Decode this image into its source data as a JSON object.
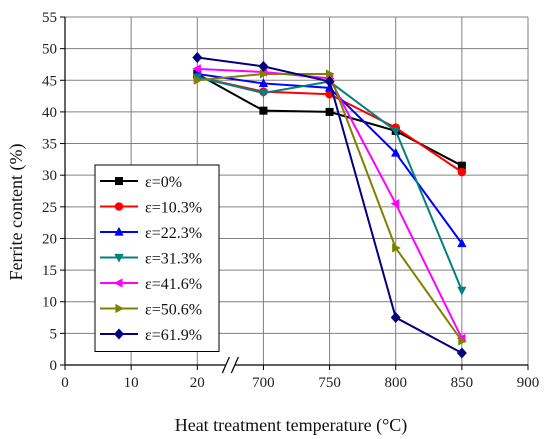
{
  "chart_data": {
    "type": "line",
    "title": "",
    "xlabel": "Heat treatment temperature (°C)",
    "ylabel": "Ferrite content (%)",
    "ylim": [
      0,
      55
    ],
    "y_ticks": [
      "0",
      "5",
      "10",
      "15",
      "20",
      "25",
      "30",
      "35",
      "40",
      "45",
      "50",
      "55"
    ],
    "x_ticks": [
      "0",
      "10",
      "20",
      "700",
      "750",
      "800",
      "850",
      "900"
    ],
    "x_axis_break": "between 20 and 700",
    "grid": true,
    "legend_position": "lower-left",
    "categories": [
      "20",
      "700",
      "750",
      "800",
      "850"
    ],
    "series": [
      {
        "name": "ε=0%",
        "color": "#000000",
        "marker": "square",
        "values": [
          46.0,
          40.2,
          40.0,
          37.0,
          31.5
        ]
      },
      {
        "name": "ε=10.3%",
        "color": "#ff0000",
        "marker": "circle",
        "values": [
          45.5,
          43.2,
          42.8,
          37.5,
          30.5
        ]
      },
      {
        "name": "ε=22.3%",
        "color": "#0000ff",
        "marker": "triangle-up",
        "values": [
          46.0,
          44.5,
          43.8,
          33.5,
          19.2
        ]
      },
      {
        "name": "ε=31.3%",
        "color": "#008080",
        "marker": "triangle-down",
        "values": [
          45.5,
          43.0,
          44.8,
          37.0,
          11.8
        ]
      },
      {
        "name": "ε=41.6%",
        "color": "#ff00ff",
        "marker": "triangle-left",
        "values": [
          46.8,
          46.3,
          45.3,
          25.5,
          4.2
        ]
      },
      {
        "name": "ε=50.6%",
        "color": "#808000",
        "marker": "triangle-right",
        "values": [
          45.0,
          46.0,
          46.0,
          18.5,
          3.8
        ]
      },
      {
        "name": "ε=61.9%",
        "color": "#000080",
        "marker": "diamond",
        "values": [
          48.6,
          47.2,
          44.8,
          7.5,
          1.9
        ]
      }
    ]
  }
}
